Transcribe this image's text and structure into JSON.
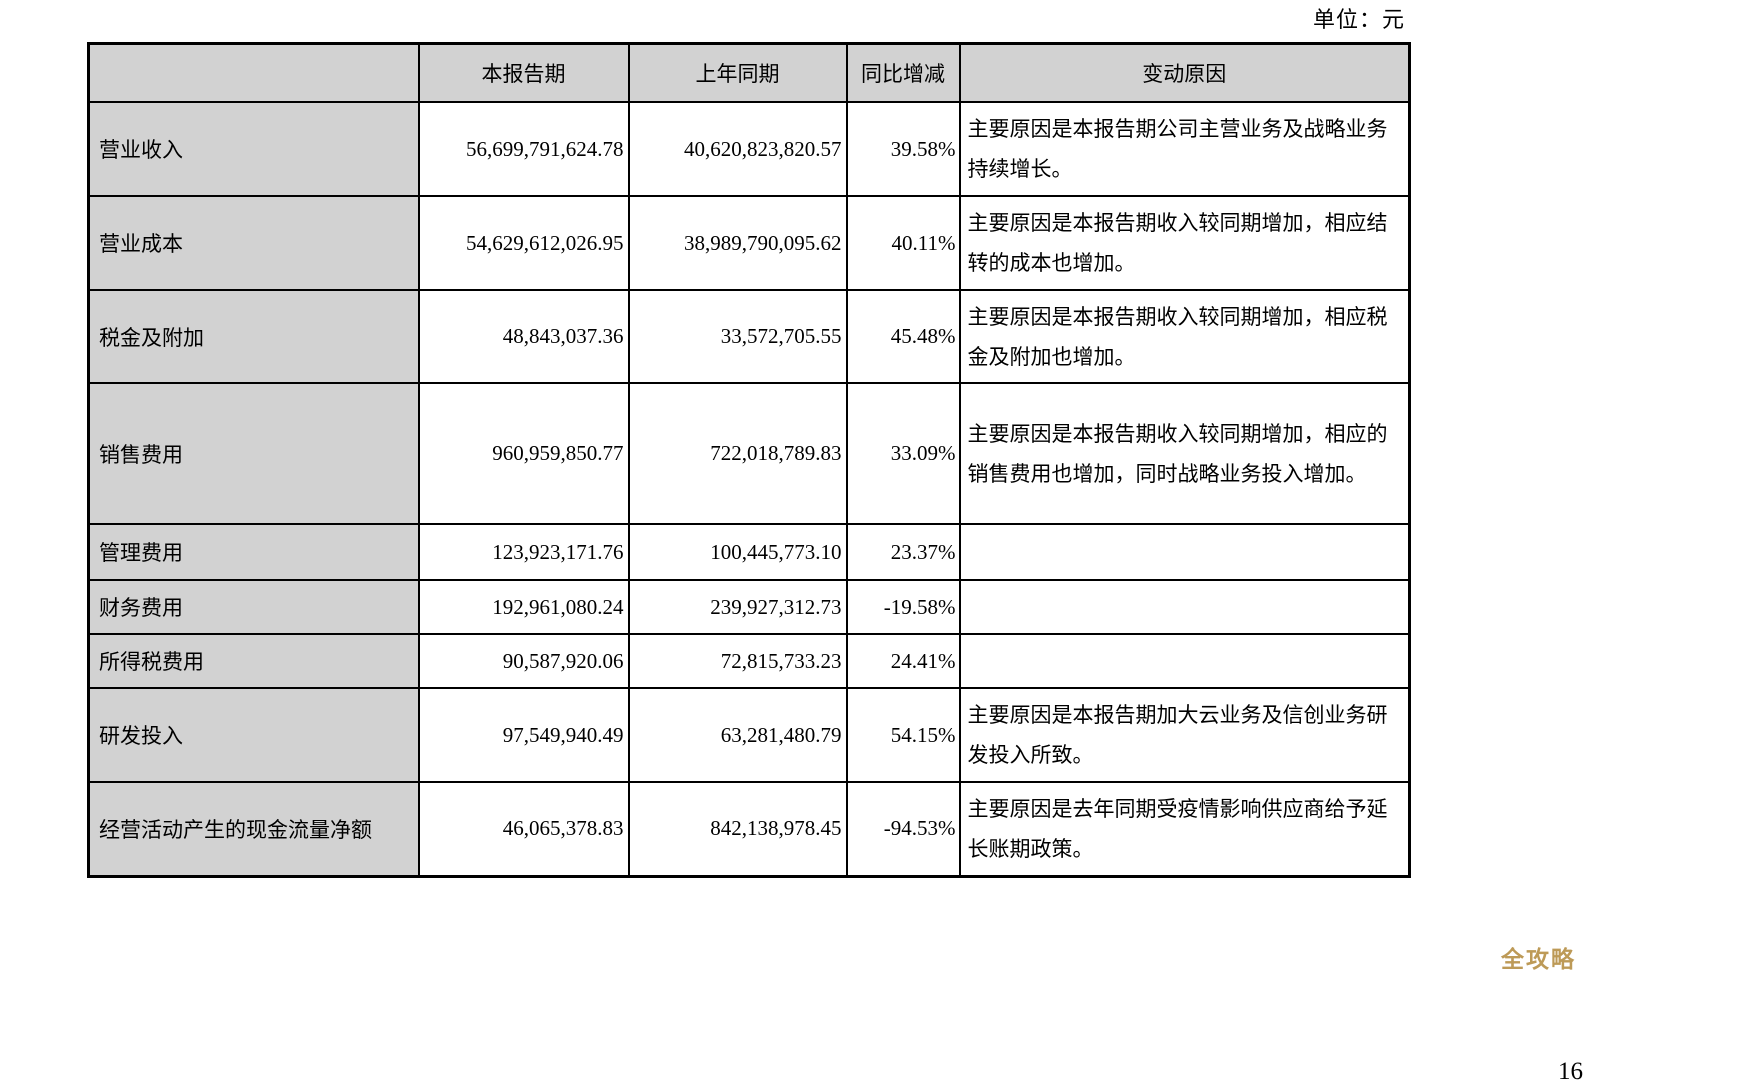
{
  "page": {
    "unit_label": "单位：元",
    "page_number": "16",
    "watermark": "全攻略"
  },
  "table": {
    "headers": [
      "",
      "本报告期",
      "上年同期",
      "同比增减",
      "变动原因"
    ],
    "rows": [
      {
        "item": "营业收入",
        "current": "56,699,791,624.78",
        "prior": "40,620,823,820.57",
        "change": "39.58%",
        "reason": "主要原因是本报告期公司主营业务及战略业务持续增长。"
      },
      {
        "item": "营业成本",
        "current": "54,629,612,026.95",
        "prior": "38,989,790,095.62",
        "change": "40.11%",
        "reason": "主要原因是本报告期收入较同期增加，相应结转的成本也增加。"
      },
      {
        "item": "税金及附加",
        "current": "48,843,037.36",
        "prior": "33,572,705.55",
        "change": "45.48%",
        "reason": "主要原因是本报告期收入较同期增加，相应税金及附加也增加。"
      },
      {
        "item": "销售费用",
        "current": "960,959,850.77",
        "prior": "722,018,789.83",
        "change": "33.09%",
        "reason": "主要原因是本报告期收入较同期增加，相应的销售费用也增加，同时战略业务投入增加。"
      },
      {
        "item": "管理费用",
        "current": "123,923,171.76",
        "prior": "100,445,773.10",
        "change": "23.37%",
        "reason": ""
      },
      {
        "item": "财务费用",
        "current": "192,961,080.24",
        "prior": "239,927,312.73",
        "change": "-19.58%",
        "reason": ""
      },
      {
        "item": "所得税费用",
        "current": "90,587,920.06",
        "prior": "72,815,733.23",
        "change": "24.41%",
        "reason": ""
      },
      {
        "item": "研发投入",
        "current": "97,549,940.49",
        "prior": "63,281,480.79",
        "change": "54.15%",
        "reason": "主要原因是本报告期加大云业务及信创业务研发投入所致。"
      },
      {
        "item": "经营活动产生的现金流量净额",
        "current": "46,065,378.83",
        "prior": "842,138,978.45",
        "change": "-94.53%",
        "reason": "主要原因是去年同期受疫情影响供应商给予延长账期政策。"
      }
    ]
  }
}
